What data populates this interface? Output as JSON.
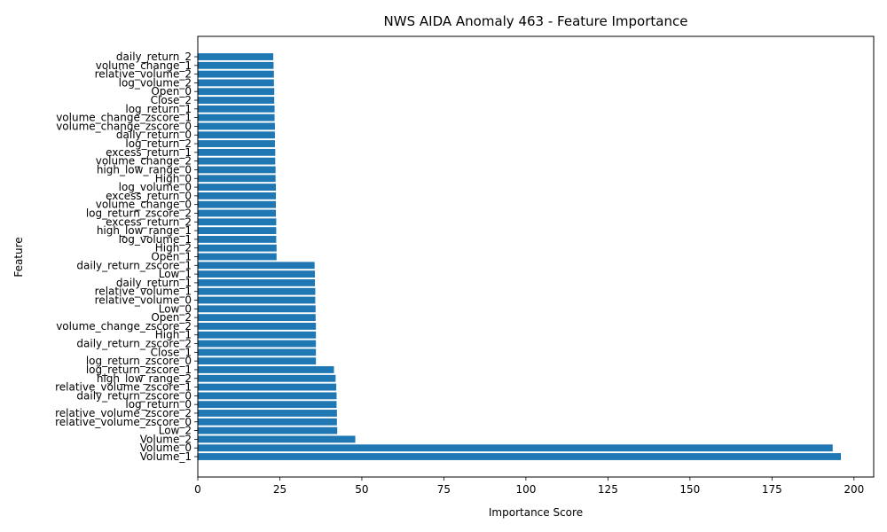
{
  "chart_data": {
    "type": "bar",
    "orientation": "horizontal",
    "title": "NWS AIDA Anomaly 463 - Feature Importance",
    "xlabel": "Importance Score",
    "ylabel": "Feature",
    "xlim": [
      0,
      206
    ],
    "xticks": [
      0,
      25,
      50,
      75,
      100,
      125,
      150,
      175,
      200
    ],
    "bar_color": "#1f77b4",
    "grid": false,
    "categories": [
      "Volume_1",
      "Volume_0",
      "Volume_2",
      "Low_2",
      "relative_volume_zscore_0",
      "relative_volume_zscore_2",
      "log_return_0",
      "daily_return_zscore_0",
      "relative_volume_zscore_1",
      "high_low_range_2",
      "log_return_zscore_1",
      "log_return_zscore_0",
      "Close_1",
      "daily_return_zscore_2",
      "High_1",
      "volume_change_zscore_2",
      "Open_2",
      "Low_0",
      "relative_volume_0",
      "relative_volume_1",
      "daily_return_1",
      "Low_1",
      "daily_return_zscore_1",
      "Open_1",
      "High_2",
      "log_volume_1",
      "high_low_range_1",
      "excess_return_2",
      "log_return_zscore_2",
      "volume_change_0",
      "excess_return_0",
      "log_volume_0",
      "High_0",
      "high_low_range_0",
      "volume_change_2",
      "excess_return_1",
      "log_return_2",
      "daily_return_0",
      "volume_change_zscore_0",
      "volume_change_zscore_1",
      "log_return_1",
      "Close_2",
      "Open_0",
      "log_volume_2",
      "relative_volume_2",
      "volume_change_1",
      "daily_return_2"
    ],
    "values": [
      196,
      193.5,
      48,
      42.5,
      42.4,
      42.4,
      42.3,
      42.3,
      42.2,
      42,
      41.5,
      36,
      36,
      36,
      36,
      36,
      35.9,
      35.9,
      35.8,
      35.8,
      35.7,
      35.7,
      35.6,
      24,
      24,
      23.9,
      23.9,
      23.9,
      23.8,
      23.8,
      23.8,
      23.8,
      23.7,
      23.7,
      23.6,
      23.6,
      23.5,
      23.5,
      23.5,
      23.4,
      23.4,
      23.3,
      23.3,
      23.2,
      23.2,
      23.1,
      23
    ]
  }
}
